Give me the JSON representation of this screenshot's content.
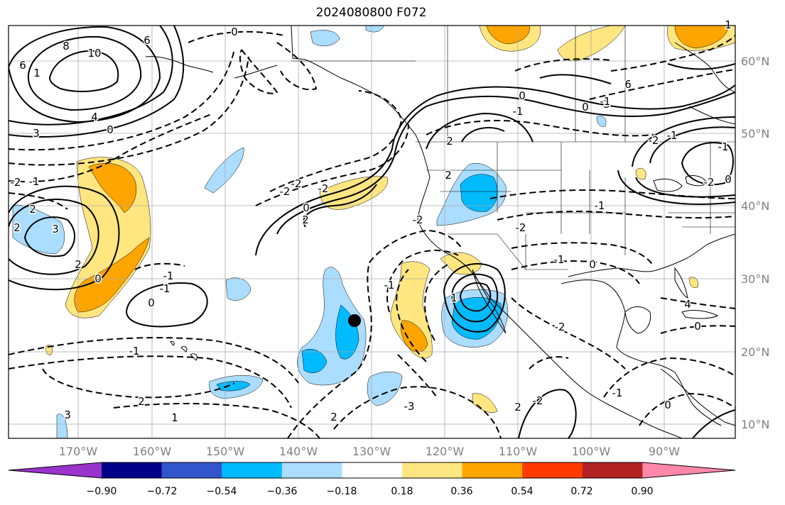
{
  "title": "2024080800 F072",
  "lat_labels": [
    "60°N",
    "50°N",
    "40°N",
    "30°N",
    "20°N",
    "10°N"
  ],
  "lon_labels": [
    "170°W",
    "160°W",
    "150°W",
    "140°W",
    "130°W",
    "120°W",
    "110°W",
    "100°W",
    "90°W"
  ],
  "colorbar": {
    "tick_labels": [
      "−0.90",
      "−0.72",
      "−0.54",
      "−0.36",
      "−0.18",
      "0.18",
      "0.36",
      "0.54",
      "0.72",
      "0.90"
    ],
    "colors": [
      "#9933cc",
      "#000088",
      "#3355cc",
      "#00bbff",
      "#aaddff",
      "#ffffff",
      "#ffe680",
      "#ffa500",
      "#ff3a00",
      "#b22222",
      "#ff88aa"
    ]
  },
  "contour_labels": [
    "8",
    "10",
    "6",
    "6",
    "4",
    "3",
    "3",
    "2",
    "1",
    "0",
    "-2",
    "-1",
    "2",
    "3",
    "2",
    "0",
    "-1",
    "-1",
    "0",
    "-1",
    "1",
    "-2",
    "-2",
    "0",
    "2",
    "-2",
    "0",
    "-2",
    "2",
    "2",
    "-2",
    "-1",
    "-1",
    "0",
    "1",
    "-1",
    "-3",
    "2",
    "2",
    "2",
    "-2",
    "-2",
    "4",
    "6",
    "3",
    "-1",
    "-2",
    "0",
    "0",
    "-1",
    "-2",
    "-1",
    "0",
    "1",
    "-1",
    "0",
    "-1",
    "0"
  ],
  "marker": "storm-position"
}
